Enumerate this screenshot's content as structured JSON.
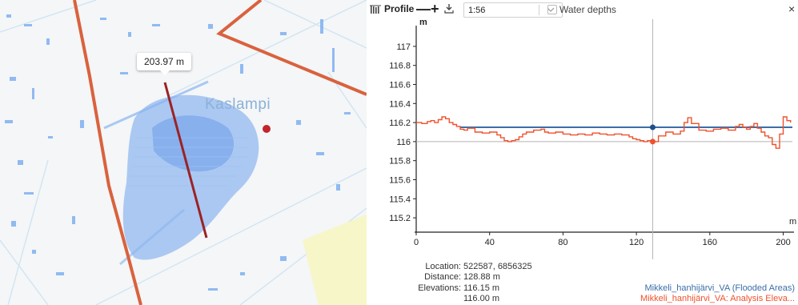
{
  "map": {
    "distance_label": "203.97 m",
    "place_name": "Kaslampi",
    "colors": {
      "road": "#d9623e",
      "profile_line": "#9b2226",
      "water": "#6fa3ee",
      "marker": "#c0262b"
    }
  },
  "toolbar": {
    "profile_icon": "profile-chart-icon",
    "title": "Profile",
    "zoom_out": "—",
    "zoom_in": "+",
    "download_icon": "download-icon",
    "scale_value": "1:56",
    "water_depths_label": "Water depths",
    "close": "×"
  },
  "chart_data": {
    "type": "line",
    "xlabel": "m",
    "ylabel": "m",
    "xlim": [
      0,
      205
    ],
    "ylim": [
      115.1,
      117.1
    ],
    "x_ticks": [
      0,
      40,
      80,
      120,
      160,
      200
    ],
    "y_ticks": [
      115.2,
      115.4,
      115.6,
      115.8,
      116,
      116.2,
      116.4,
      116.6,
      116.8,
      117
    ],
    "y_tick_labels": [
      "115.2",
      "115.4",
      "115.6",
      "115.8",
      "116",
      "116.2",
      "116.4",
      "116.6",
      "116.8",
      "117"
    ],
    "cursor_x": 128.88,
    "series": [
      {
        "name": "Mikkeli_hanhijärvi_VA (Flooded Areas)",
        "color": "#3b6ea8",
        "x": [
          24,
          205
        ],
        "y": [
          116.15,
          116.15
        ]
      },
      {
        "name": "Mikkeli_hanhijärvi_VA: Analysis Eleva...",
        "color": "#f0512c",
        "x": [
          0,
          3,
          6,
          8,
          10,
          12,
          14,
          16,
          18,
          20,
          22,
          24,
          26,
          28,
          32,
          36,
          40,
          44,
          46,
          48,
          50,
          52,
          54,
          56,
          58,
          60,
          64,
          68,
          70,
          72,
          76,
          80,
          84,
          88,
          92,
          96,
          100,
          104,
          108,
          112,
          116,
          118,
          120,
          122,
          124,
          126,
          128.88,
          132,
          136,
          140,
          144,
          146,
          148,
          150,
          154,
          158,
          162,
          166,
          170,
          174,
          176,
          178,
          180,
          182,
          184,
          186,
          188,
          190,
          192,
          194,
          196,
          198,
          200,
          202,
          204
        ],
        "y": [
          116.2,
          116.19,
          116.21,
          116.22,
          116.2,
          116.23,
          116.26,
          116.24,
          116.2,
          116.18,
          116.16,
          116.13,
          116.12,
          116.14,
          116.1,
          116.09,
          116.1,
          116.07,
          116.04,
          116.01,
          116.0,
          116.01,
          116.02,
          116.05,
          116.08,
          116.1,
          116.12,
          116.13,
          116.1,
          116.09,
          116.1,
          116.08,
          116.07,
          116.08,
          116.07,
          116.09,
          116.08,
          116.07,
          116.08,
          116.07,
          116.05,
          116.03,
          116.02,
          116.01,
          116.0,
          116.01,
          116.0,
          116.06,
          116.1,
          116.08,
          116.11,
          116.2,
          116.25,
          116.19,
          116.12,
          116.11,
          116.13,
          116.14,
          116.12,
          116.16,
          116.18,
          116.15,
          116.13,
          116.16,
          116.19,
          116.14,
          116.1,
          116.06,
          116.04,
          115.97,
          115.93,
          116.08,
          116.26,
          116.22,
          116.2
        ]
      }
    ]
  },
  "info": {
    "location_label": "Location:",
    "location_value": "522587, 6856325",
    "distance_label": "Distance:",
    "distance_value": "128.88 m",
    "elevations_label": "Elevations:",
    "elevation_1": "116.15 m",
    "elevation_2": "116.00 m"
  },
  "legend": {
    "series_1": "Mikkeli_hanhijärvi_VA (Flooded Areas)",
    "series_2": "Mikkeli_hanhijärvi_VA: Analysis Eleva..."
  }
}
